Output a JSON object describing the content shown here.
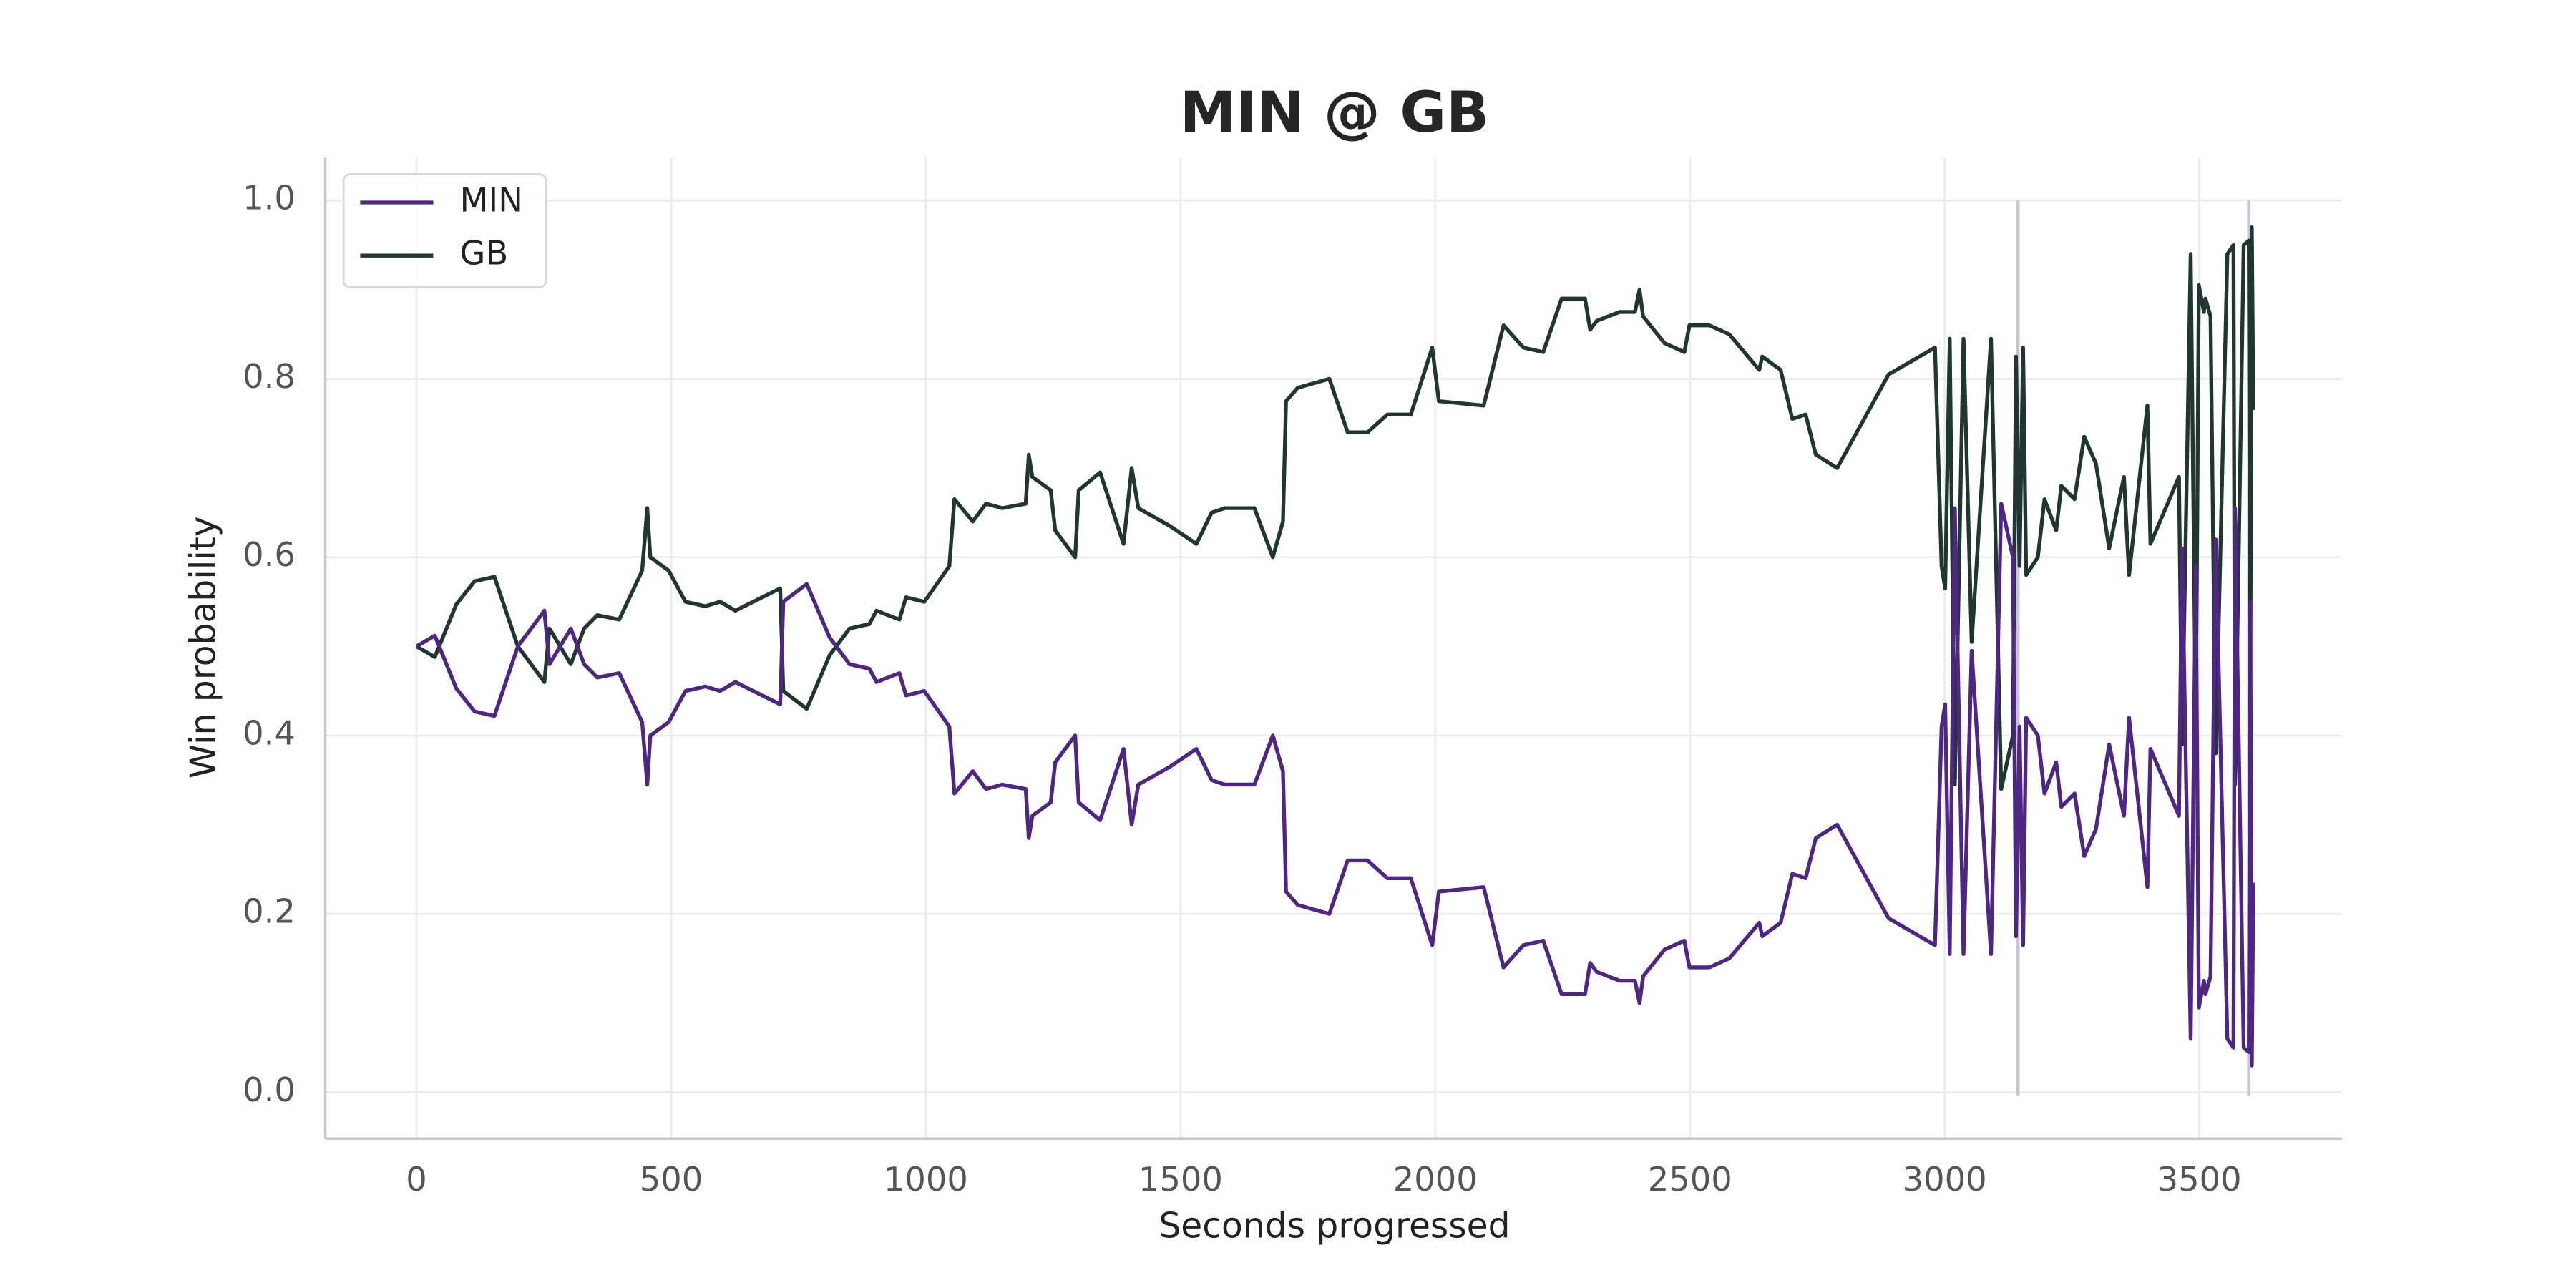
{
  "chart_data": {
    "type": "line",
    "title": "MIN @ GB",
    "x_label": "Seconds progressed",
    "y_label": "Win probability",
    "xlim": [
      -179,
      3780
    ],
    "ylim": [
      -0.052,
      1.048
    ],
    "xticks": [
      0,
      500,
      1000,
      1500,
      2000,
      2500,
      3000,
      3500
    ],
    "yticks": [
      {
        "value": 0,
        "label": "0.0"
      },
      0.2,
      0.4,
      0.6,
      0.8,
      {
        "value": 1,
        "label": "1.0"
      }
    ],
    "grid": true,
    "legend": "upper left",
    "vlines": [
      3144,
      3597
    ],
    "vline_color": "#c9c4d6",
    "x": [
      0,
      36,
      78,
      114,
      153,
      199,
      251,
      261,
      303,
      329,
      355,
      398,
      443,
      453,
      459,
      495,
      528,
      567,
      596,
      626,
      714,
      720,
      766,
      811,
      850,
      889,
      903,
      948,
      961,
      997,
      1046,
      1056,
      1092,
      1118,
      1150,
      1196,
      1202,
      1209,
      1245,
      1254,
      1293,
      1300,
      1342,
      1388,
      1404,
      1417,
      1479,
      1531,
      1561,
      1587,
      1645,
      1681,
      1701,
      1707,
      1730,
      1792,
      1828,
      1867,
      1906,
      1952,
      1994,
      2007,
      2095,
      2134,
      2173,
      2212,
      2248,
      2294,
      2304,
      2317,
      2362,
      2392,
      2401,
      2408,
      2450,
      2489,
      2499,
      2538,
      2577,
      2636,
      2642,
      2678,
      2701,
      2727,
      2747,
      2789,
      2890,
      2981,
      2994,
      3001,
      3010,
      3020,
      3037,
      3053,
      3091,
      3111,
      3134,
      3140,
      3147,
      3154,
      3160,
      3183,
      3196,
      3219,
      3229,
      3255,
      3274,
      3297,
      3323,
      3352,
      3362,
      3398,
      3404,
      3460,
      3466,
      3483,
      3493,
      3499,
      3509,
      3512,
      3522,
      3532,
      3555,
      3567,
      3570,
      3587,
      3597,
      3600,
      3603,
      3606
    ],
    "series": [
      {
        "name": "MIN",
        "color": "#4f2683",
        "values": [
          0.5,
          0.512,
          0.453,
          0.427,
          0.422,
          0.5,
          0.54,
          0.48,
          0.52,
          0.48,
          0.465,
          0.47,
          0.415,
          0.345,
          0.4,
          0.415,
          0.45,
          0.455,
          0.45,
          0.46,
          0.435,
          0.55,
          0.57,
          0.51,
          0.48,
          0.475,
          0.46,
          0.47,
          0.445,
          0.45,
          0.41,
          0.335,
          0.36,
          0.34,
          0.345,
          0.34,
          0.285,
          0.31,
          0.325,
          0.37,
          0.4,
          0.325,
          0.305,
          0.385,
          0.3,
          0.345,
          0.365,
          0.385,
          0.35,
          0.345,
          0.345,
          0.4,
          0.36,
          0.225,
          0.21,
          0.2,
          0.26,
          0.26,
          0.24,
          0.24,
          0.165,
          0.225,
          0.23,
          0.14,
          0.165,
          0.17,
          0.11,
          0.11,
          0.145,
          0.135,
          0.125,
          0.125,
          0.1,
          0.13,
          0.16,
          0.17,
          0.14,
          0.14,
          0.15,
          0.19,
          0.175,
          0.19,
          0.245,
          0.24,
          0.285,
          0.3,
          0.195,
          0.165,
          0.41,
          0.435,
          0.155,
          0.655,
          0.155,
          0.495,
          0.155,
          0.66,
          0.6,
          0.175,
          0.41,
          0.165,
          0.42,
          0.4,
          0.335,
          0.37,
          0.32,
          0.335,
          0.265,
          0.295,
          0.39,
          0.31,
          0.42,
          0.23,
          0.385,
          0.31,
          0.61,
          0.06,
          0.59,
          0.095,
          0.125,
          0.11,
          0.13,
          0.62,
          0.06,
          0.05,
          0.655,
          0.05,
          0.045,
          0.55,
          0.03,
          0.235
        ]
      },
      {
        "name": "GB",
        "color": "#203731",
        "values": [
          0.5,
          0.488,
          0.547,
          0.573,
          0.578,
          0.5,
          0.46,
          0.52,
          0.48,
          0.52,
          0.535,
          0.53,
          0.585,
          0.655,
          0.6,
          0.585,
          0.55,
          0.545,
          0.55,
          0.54,
          0.565,
          0.45,
          0.43,
          0.49,
          0.52,
          0.525,
          0.54,
          0.53,
          0.555,
          0.55,
          0.59,
          0.665,
          0.64,
          0.66,
          0.655,
          0.66,
          0.715,
          0.69,
          0.675,
          0.63,
          0.6,
          0.675,
          0.695,
          0.615,
          0.7,
          0.655,
          0.635,
          0.615,
          0.65,
          0.655,
          0.655,
          0.6,
          0.64,
          0.775,
          0.79,
          0.8,
          0.74,
          0.74,
          0.76,
          0.76,
          0.835,
          0.775,
          0.77,
          0.86,
          0.835,
          0.83,
          0.89,
          0.89,
          0.855,
          0.865,
          0.875,
          0.875,
          0.9,
          0.87,
          0.84,
          0.83,
          0.86,
          0.86,
          0.85,
          0.81,
          0.825,
          0.81,
          0.755,
          0.76,
          0.715,
          0.7,
          0.805,
          0.835,
          0.59,
          0.565,
          0.845,
          0.345,
          0.845,
          0.505,
          0.845,
          0.34,
          0.4,
          0.825,
          0.59,
          0.835,
          0.58,
          0.6,
          0.665,
          0.63,
          0.68,
          0.665,
          0.735,
          0.705,
          0.61,
          0.69,
          0.58,
          0.77,
          0.615,
          0.69,
          0.39,
          0.94,
          0.41,
          0.905,
          0.875,
          0.89,
          0.87,
          0.38,
          0.94,
          0.95,
          0.345,
          0.95,
          0.955,
          0.45,
          0.97,
          0.765
        ]
      }
    ]
  }
}
